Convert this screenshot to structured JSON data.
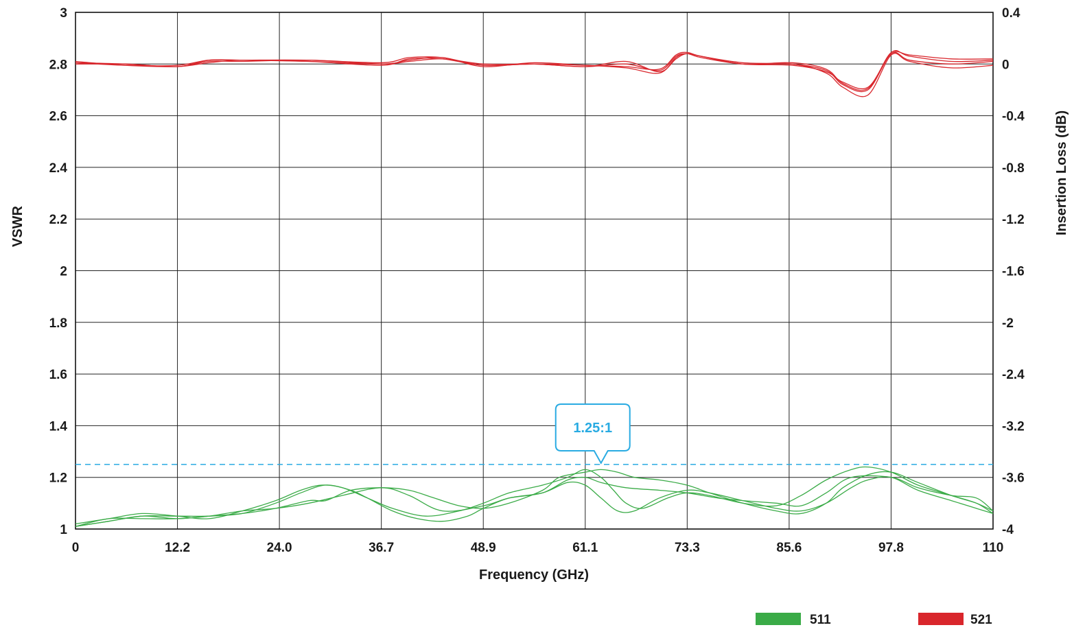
{
  "chart_data": {
    "type": "line",
    "xlabel": "Frequency (GHz)",
    "ylabel_left": "VSWR",
    "ylabel_right": "Insertion Loss (dB)",
    "x_ticks": [
      "0",
      "12.2",
      "24.0",
      "36.7",
      "48.9",
      "61.1",
      "73.3",
      "85.6",
      "97.8",
      "110"
    ],
    "xlim": [
      0,
      110
    ],
    "y_left_ticks": [
      "1",
      "1.2",
      "1.4",
      "1.6",
      "1.8",
      "2",
      "2.2",
      "2.4",
      "2.6",
      "2.8",
      "3"
    ],
    "y_left_lim": [
      1,
      3
    ],
    "y_right_ticks": [
      "-4",
      "-3.6",
      "-3.2",
      "-2.4",
      "-2",
      "-1.6",
      "-1.2",
      "-0.8",
      "-0.4",
      "0",
      "0.4"
    ],
    "grid": true,
    "legend_position": "bottom-right",
    "colors": {
      "s11": "#3aab47",
      "s21": "#d9262c",
      "reference": "#29abe2"
    },
    "reference_line": {
      "value": 1.25,
      "axis": "left",
      "label": "1.25:1",
      "label_x": 63
    },
    "series": [
      {
        "name": "511",
        "axis": "left",
        "traces": [
          {
            "x": [
              0,
              4,
              8,
              12.2,
              16,
              20,
              24,
              28,
              30,
              33,
              36.7,
              40,
              43,
              46,
              48.9,
              52,
              56,
              58,
              61.1,
              63,
              65,
              67,
              70,
              73.3,
              76,
              80,
              84,
              87,
              90,
              92,
              95,
              97.8,
              101,
              105,
              108,
              110
            ],
            "y": [
              1.01,
              1.03,
              1.05,
              1.04,
              1.05,
              1.06,
              1.08,
              1.11,
              1.11,
              1.15,
              1.16,
              1.15,
              1.12,
              1.09,
              1.08,
              1.1,
              1.15,
              1.2,
              1.22,
              1.23,
              1.22,
              1.2,
              1.19,
              1.17,
              1.14,
              1.1,
              1.07,
              1.06,
              1.1,
              1.16,
              1.21,
              1.22,
              1.18,
              1.13,
              1.1,
              1.07
            ]
          },
          {
            "x": [
              0,
              4,
              8,
              12.2,
              16,
              20,
              24,
              27,
              29.5,
              32,
              35,
              38,
              42,
              46,
              48.9,
              52,
              56,
              59,
              61.1,
              63,
              64.5,
              66,
              68,
              71,
              73.3,
              76,
              80,
              84,
              87,
              90,
              93,
              95,
              97.8,
              101,
              105,
              108,
              110
            ],
            "y": [
              1.02,
              1.04,
              1.06,
              1.05,
              1.04,
              1.07,
              1.11,
              1.15,
              1.17,
              1.16,
              1.12,
              1.08,
              1.05,
              1.07,
              1.1,
              1.14,
              1.17,
              1.2,
              1.23,
              1.2,
              1.15,
              1.1,
              1.08,
              1.12,
              1.14,
              1.13,
              1.1,
              1.09,
              1.13,
              1.19,
              1.23,
              1.24,
              1.22,
              1.17,
              1.13,
              1.1,
              1.06
            ]
          },
          {
            "x": [
              0,
              4,
              8,
              12.2,
              16,
              20,
              24,
              27,
              30,
              33,
              35,
              38,
              41,
              44,
              47,
              48.9,
              52,
              56,
              59,
              61.1,
              63,
              65,
              67,
              70,
              73.3,
              76,
              80,
              84,
              87,
              90,
              93,
              95,
              97.8,
              101,
              105,
              108,
              110
            ],
            "y": [
              1.01,
              1.03,
              1.05,
              1.05,
              1.05,
              1.06,
              1.1,
              1.14,
              1.17,
              1.15,
              1.12,
              1.07,
              1.04,
              1.03,
              1.05,
              1.08,
              1.12,
              1.14,
              1.18,
              1.17,
              1.12,
              1.07,
              1.07,
              1.12,
              1.15,
              1.14,
              1.11,
              1.08,
              1.07,
              1.1,
              1.16,
              1.19,
              1.2,
              1.15,
              1.11,
              1.08,
              1.06
            ]
          },
          {
            "x": [
              0,
              4,
              8,
              12.2,
              16,
              20,
              24,
              28,
              32,
              36.7,
              40,
              44,
              48.9,
              52,
              56,
              59,
              61.1,
              63,
              66,
              70,
              73.3,
              77,
              80,
              84,
              87,
              90,
              93,
              97.8,
              101,
              105,
              108,
              110
            ],
            "y": [
              1.01,
              1.04,
              1.04,
              1.04,
              1.05,
              1.07,
              1.08,
              1.1,
              1.13,
              1.16,
              1.13,
              1.07,
              1.09,
              1.12,
              1.14,
              1.19,
              1.2,
              1.18,
              1.16,
              1.15,
              1.14,
              1.12,
              1.11,
              1.1,
              1.09,
              1.14,
              1.2,
              1.2,
              1.16,
              1.13,
              1.12,
              1.07
            ]
          }
        ]
      },
      {
        "name": "521",
        "axis": "right",
        "traces": [
          {
            "x": [
              0,
              6,
              12.2,
              16,
              20,
              28,
              36.7,
              40,
              44,
              48.9,
              55,
              61.1,
              66,
              70,
              72,
              73.3,
              75,
              80,
              86,
              90,
              92,
              95,
              97.8,
              100,
              105,
              110
            ],
            "y": [
              0.01,
              -0.01,
              -0.01,
              0.03,
              0.03,
              0.03,
              0.01,
              0.05,
              0.05,
              -0.01,
              0.0,
              -0.02,
              0.02,
              -0.06,
              0.04,
              0.08,
              0.06,
              0.0,
              -0.01,
              -0.06,
              -0.14,
              -0.18,
              0.08,
              0.07,
              0.04,
              0.04
            ]
          },
          {
            "x": [
              0,
              6,
              12.2,
              16,
              20,
              28,
              36.7,
              40,
              44,
              48.9,
              55,
              61.1,
              66,
              70,
              72,
              73.3,
              75,
              80,
              86,
              90,
              92,
              95,
              97.8,
              100,
              105,
              110
            ],
            "y": [
              0.0,
              0.0,
              -0.02,
              0.03,
              0.03,
              0.02,
              0.0,
              0.03,
              0.05,
              -0.02,
              0.01,
              -0.01,
              -0.02,
              -0.04,
              0.07,
              0.09,
              0.06,
              0.01,
              0.0,
              -0.05,
              -0.16,
              -0.2,
              0.08,
              0.03,
              0.0,
              0.02
            ]
          },
          {
            "x": [
              0,
              6,
              12.2,
              16,
              20,
              28,
              36.7,
              40,
              44,
              48.9,
              55,
              61.1,
              66,
              70,
              72,
              73.3,
              75,
              80,
              86,
              90,
              92,
              95,
              97.8,
              100,
              105,
              110
            ],
            "y": [
              0.02,
              -0.01,
              -0.02,
              0.01,
              0.03,
              0.02,
              -0.01,
              0.04,
              0.04,
              -0.01,
              0.0,
              -0.01,
              -0.03,
              -0.07,
              0.05,
              0.08,
              0.05,
              0.0,
              0.0,
              -0.07,
              -0.18,
              -0.24,
              0.07,
              0.02,
              -0.03,
              -0.01
            ]
          },
          {
            "x": [
              0,
              6,
              12.2,
              16,
              20,
              28,
              36.7,
              40,
              44,
              48.9,
              55,
              61.1,
              66,
              70,
              72,
              73.3,
              75,
              80,
              86,
              90,
              92,
              95,
              97.8,
              100,
              105,
              110
            ],
            "y": [
              0.01,
              0.0,
              -0.02,
              0.02,
              0.02,
              0.03,
              0.0,
              0.02,
              0.04,
              0.0,
              0.0,
              -0.02,
              0.0,
              -0.05,
              0.06,
              0.08,
              0.06,
              0.0,
              0.01,
              -0.04,
              -0.15,
              -0.19,
              0.09,
              0.06,
              0.02,
              0.03
            ]
          }
        ]
      }
    ]
  }
}
